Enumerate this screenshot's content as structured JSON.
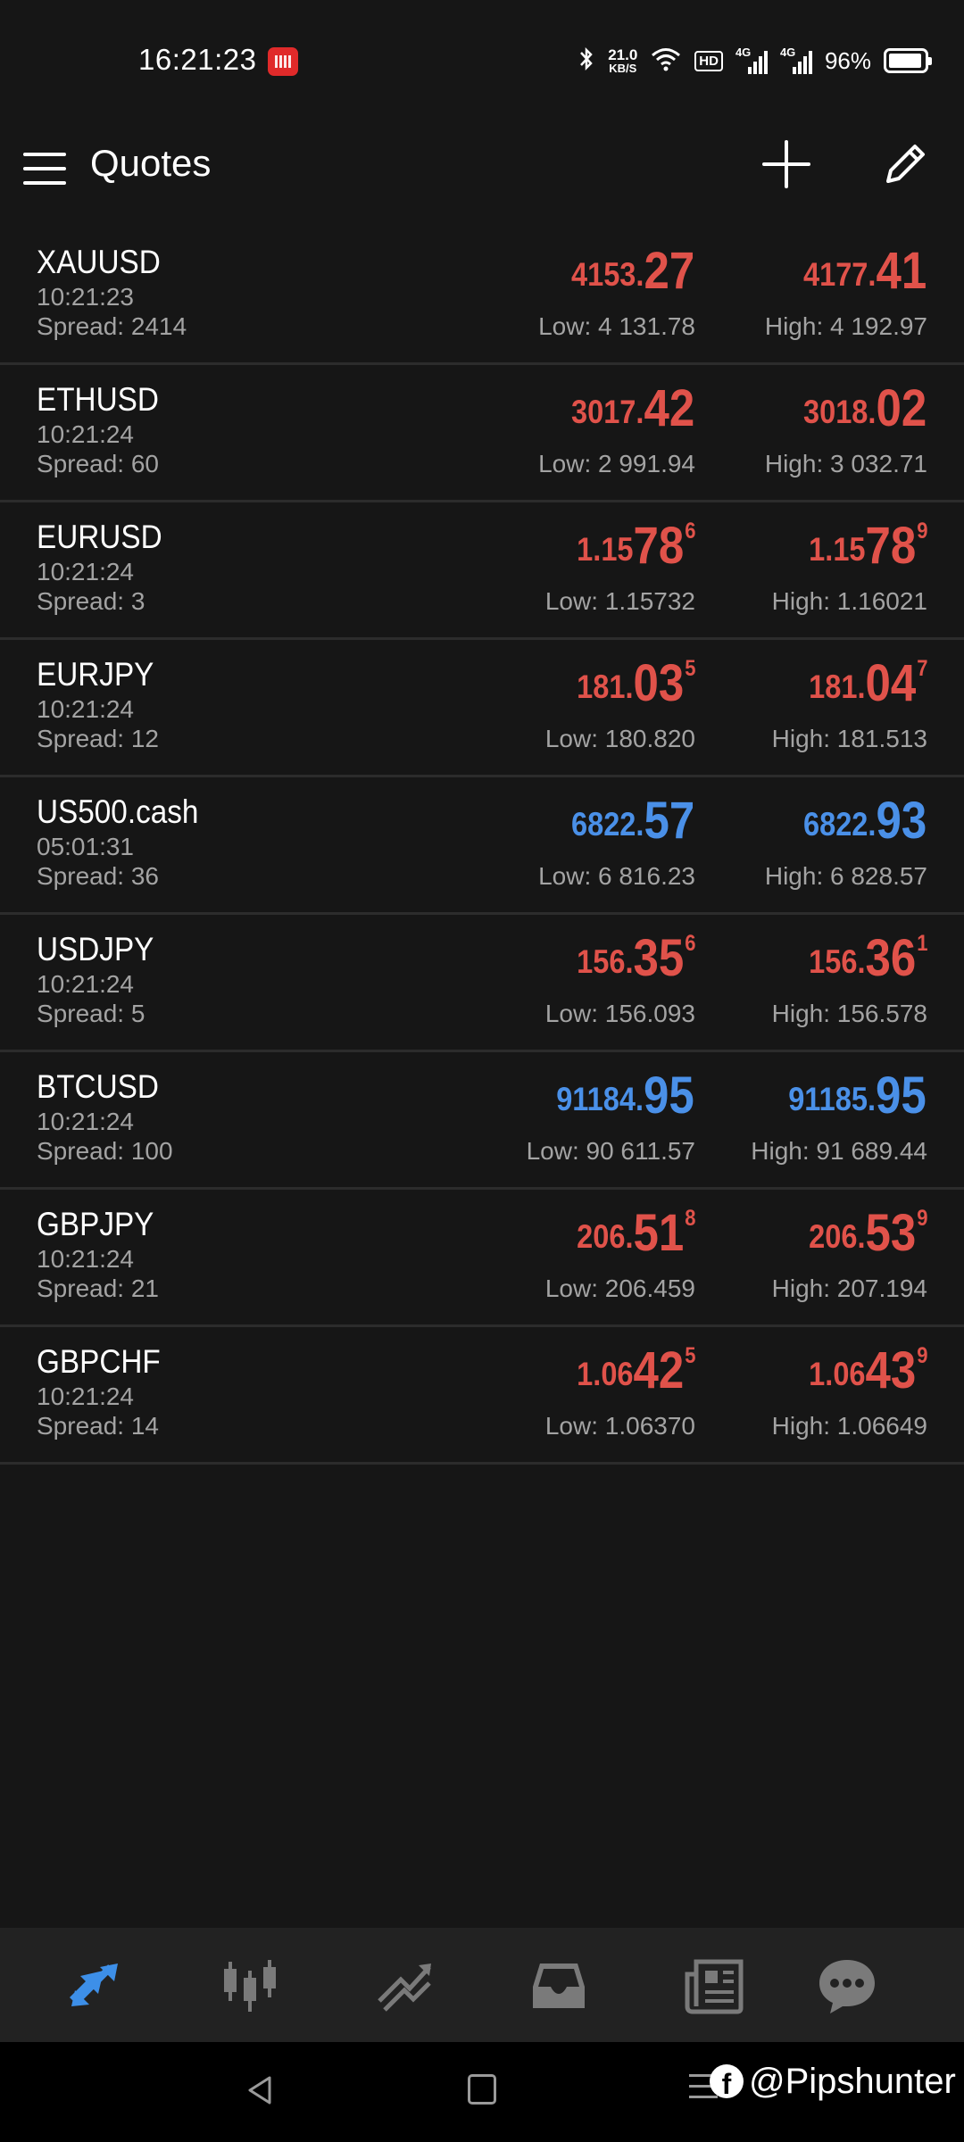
{
  "status_bar": {
    "time": "16:21:23",
    "net_speed_value": "21.0",
    "net_speed_unit": "KB/S",
    "hd_label": "HD",
    "signal1_label": "4G",
    "signal2_label": "4G",
    "battery_pct": "96%",
    "battery_level": 0.96
  },
  "toolbar": {
    "title": "Quotes"
  },
  "quotes": [
    {
      "symbol": "XAUUSD",
      "time": "10:21:23",
      "spread": "Spread: 2414",
      "color": "red",
      "bid": {
        "small": "4153.",
        "big": "27",
        "sup": ""
      },
      "ask": {
        "small": "4177.",
        "big": "41",
        "sup": ""
      },
      "low": "Low: 4 131.78",
      "high": "High: 4 192.97"
    },
    {
      "symbol": "ETHUSD",
      "time": "10:21:24",
      "spread": "Spread: 60",
      "color": "red",
      "bid": {
        "small": "3017.",
        "big": "42",
        "sup": ""
      },
      "ask": {
        "small": "3018.",
        "big": "02",
        "sup": ""
      },
      "low": "Low: 2 991.94",
      "high": "High: 3 032.71"
    },
    {
      "symbol": "EURUSD",
      "time": "10:21:24",
      "spread": "Spread: 3",
      "color": "red",
      "bid": {
        "small": "1.15",
        "big": "78",
        "sup": "6"
      },
      "ask": {
        "small": "1.15",
        "big": "78",
        "sup": "9"
      },
      "low": "Low: 1.15732",
      "high": "High: 1.16021"
    },
    {
      "symbol": "EURJPY",
      "time": "10:21:24",
      "spread": "Spread: 12",
      "color": "red",
      "bid": {
        "small": "181.",
        "big": "03",
        "sup": "5"
      },
      "ask": {
        "small": "181.",
        "big": "04",
        "sup": "7"
      },
      "low": "Low: 180.820",
      "high": "High: 181.513"
    },
    {
      "symbol": "US500.cash",
      "time": "05:01:31",
      "spread": "Spread: 36",
      "color": "blue",
      "bid": {
        "small": "6822.",
        "big": "57",
        "sup": ""
      },
      "ask": {
        "small": "6822.",
        "big": "93",
        "sup": ""
      },
      "low": "Low: 6 816.23",
      "high": "High: 6 828.57"
    },
    {
      "symbol": "USDJPY",
      "time": "10:21:24",
      "spread": "Spread: 5",
      "color": "red",
      "bid": {
        "small": "156.",
        "big": "35",
        "sup": "6"
      },
      "ask": {
        "small": "156.",
        "big": "36",
        "sup": "1"
      },
      "low": "Low: 156.093",
      "high": "High: 156.578"
    },
    {
      "symbol": "BTCUSD",
      "time": "10:21:24",
      "spread": "Spread: 100",
      "color": "blue",
      "bid": {
        "small": "91184.",
        "big": "95",
        "sup": ""
      },
      "ask": {
        "small": "91185.",
        "big": "95",
        "sup": ""
      },
      "low": "Low: 90 611.57",
      "high": "High: 91 689.44"
    },
    {
      "symbol": "GBPJPY",
      "time": "10:21:24",
      "spread": "Spread: 21",
      "color": "red",
      "bid": {
        "small": "206.",
        "big": "51",
        "sup": "8"
      },
      "ask": {
        "small": "206.",
        "big": "53",
        "sup": "9"
      },
      "low": "Low: 206.459",
      "high": "High: 207.194"
    },
    {
      "symbol": "GBPCHF",
      "time": "10:21:24",
      "spread": "Spread: 14",
      "color": "red",
      "bid": {
        "small": "1.06",
        "big": "42",
        "sup": "5"
      },
      "ask": {
        "small": "1.06",
        "big": "43",
        "sup": "9"
      },
      "low": "Low: 1.06370",
      "high": "High: 1.06649"
    }
  ],
  "bottom_nav": {
    "items": [
      {
        "icon": "quotes-arrows-icon",
        "active": true
      },
      {
        "icon": "candlestick-chart-icon",
        "active": false
      },
      {
        "icon": "trade-trend-icon",
        "active": false
      },
      {
        "icon": "history-inbox-icon",
        "active": false
      },
      {
        "icon": "news-icon",
        "active": false
      },
      {
        "icon": "chat-bubble-icon",
        "active": false
      }
    ]
  },
  "watermark": {
    "fb_letter": "f",
    "text": "@Pipshunter"
  },
  "colors": {
    "background": "#161616",
    "price_red": "#e0524a",
    "price_blue": "#4a90e8",
    "secondary_text": "#a3a3a3",
    "accent": "#3d8fe8",
    "nav_inactive": "#7a7a7a"
  }
}
